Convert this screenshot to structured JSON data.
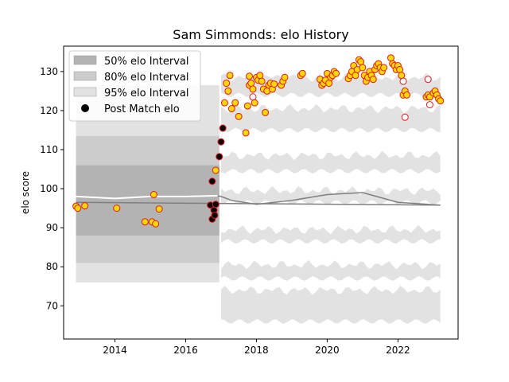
{
  "chart_data": {
    "type": "scatter",
    "title": "Sam Simmonds: elo History",
    "xlabel": "",
    "ylabel": "elo score",
    "xlim": [
      2012.55,
      2023.7
    ],
    "ylim": [
      61.5,
      136.5
    ],
    "x_ticks": [
      2014,
      2016,
      2018,
      2020,
      2022
    ],
    "y_ticks": [
      70,
      80,
      90,
      100,
      110,
      120,
      130
    ],
    "grid": false,
    "legend_position": "top-left",
    "legend": [
      {
        "label": "50% elo Interval",
        "kind": "band",
        "color": "#b3b3b3"
      },
      {
        "label": "80% elo Interval",
        "kind": "band",
        "color": "#cccccc"
      },
      {
        "label": "95% elo Interval",
        "kind": "band",
        "color": "#e2e2e2"
      },
      {
        "label": "Post Match elo",
        "kind": "marker",
        "color": "#000000"
      }
    ],
    "series": [
      {
        "label": "Post Match elo",
        "marker_face": "#ffd700",
        "marker_edge": "#e31a1c",
        "points": [
          {
            "x": 2012.9,
            "y": 95.5
          },
          {
            "x": 2012.95,
            "y": 95.0
          },
          {
            "x": 2013.15,
            "y": 95.6
          },
          {
            "x": 2014.05,
            "y": 95.0
          },
          {
            "x": 2014.85,
            "y": 91.5
          },
          {
            "x": 2015.05,
            "y": 91.5
          },
          {
            "x": 2015.1,
            "y": 98.5
          },
          {
            "x": 2015.15,
            "y": 91.0
          },
          {
            "x": 2015.25,
            "y": 94.8
          },
          {
            "x": 2016.85,
            "y": 104.7
          },
          {
            "x": 2017.1,
            "y": 122.0
          },
          {
            "x": 2017.15,
            "y": 127.0
          },
          {
            "x": 2017.2,
            "y": 125.0
          },
          {
            "x": 2017.25,
            "y": 129.0
          },
          {
            "x": 2017.3,
            "y": 120.5
          },
          {
            "x": 2017.4,
            "y": 122.0
          },
          {
            "x": 2017.5,
            "y": 118.5
          },
          {
            "x": 2017.7,
            "y": 114.3
          },
          {
            "x": 2017.75,
            "y": 121.2
          },
          {
            "x": 2017.8,
            "y": 126.5
          },
          {
            "x": 2017.8,
            "y": 128.8
          },
          {
            "x": 2017.85,
            "y": 127.0
          },
          {
            "x": 2017.9,
            "y": 125.5
          },
          {
            "x": 2017.95,
            "y": 122.0
          },
          {
            "x": 2018.0,
            "y": 128.5
          },
          {
            "x": 2018.05,
            "y": 127.8
          },
          {
            "x": 2018.1,
            "y": 129.0
          },
          {
            "x": 2018.15,
            "y": 127.5
          },
          {
            "x": 2018.2,
            "y": 125.5
          },
          {
            "x": 2018.25,
            "y": 119.5
          },
          {
            "x": 2018.3,
            "y": 125.0
          },
          {
            "x": 2018.35,
            "y": 126.5
          },
          {
            "x": 2018.4,
            "y": 127.0
          },
          {
            "x": 2018.45,
            "y": 125.5
          },
          {
            "x": 2018.5,
            "y": 126.8
          },
          {
            "x": 2018.7,
            "y": 126.5
          },
          {
            "x": 2018.75,
            "y": 127.5
          },
          {
            "x": 2018.8,
            "y": 128.5
          },
          {
            "x": 2019.25,
            "y": 129.0
          },
          {
            "x": 2019.3,
            "y": 129.5
          },
          {
            "x": 2019.8,
            "y": 128.0
          },
          {
            "x": 2019.85,
            "y": 126.5
          },
          {
            "x": 2019.9,
            "y": 127.0
          },
          {
            "x": 2019.95,
            "y": 127.8
          },
          {
            "x": 2020.0,
            "y": 129.5
          },
          {
            "x": 2020.05,
            "y": 127.0
          },
          {
            "x": 2020.1,
            "y": 128.5
          },
          {
            "x": 2020.15,
            "y": 129.0
          },
          {
            "x": 2020.2,
            "y": 130.0
          },
          {
            "x": 2020.25,
            "y": 129.5
          },
          {
            "x": 2020.6,
            "y": 128.2
          },
          {
            "x": 2020.65,
            "y": 129.0
          },
          {
            "x": 2020.7,
            "y": 130.0
          },
          {
            "x": 2020.75,
            "y": 131.5
          },
          {
            "x": 2020.8,
            "y": 129.0
          },
          {
            "x": 2020.85,
            "y": 130.5
          },
          {
            "x": 2020.9,
            "y": 133.0
          },
          {
            "x": 2020.95,
            "y": 132.5
          },
          {
            "x": 2021.0,
            "y": 131.0
          },
          {
            "x": 2021.05,
            "y": 129.0
          },
          {
            "x": 2021.1,
            "y": 127.5
          },
          {
            "x": 2021.15,
            "y": 128.5
          },
          {
            "x": 2021.2,
            "y": 130.0
          },
          {
            "x": 2021.25,
            "y": 129.0
          },
          {
            "x": 2021.3,
            "y": 128.0
          },
          {
            "x": 2021.35,
            "y": 130.5
          },
          {
            "x": 2021.4,
            "y": 131.5
          },
          {
            "x": 2021.45,
            "y": 132.0
          },
          {
            "x": 2021.5,
            "y": 131.0
          },
          {
            "x": 2021.55,
            "y": 130.0
          },
          {
            "x": 2021.6,
            "y": 131.0
          },
          {
            "x": 2021.8,
            "y": 133.5
          },
          {
            "x": 2021.85,
            "y": 132.0
          },
          {
            "x": 2021.9,
            "y": 131.5
          },
          {
            "x": 2021.95,
            "y": 130.5
          },
          {
            "x": 2022.0,
            "y": 131.5
          },
          {
            "x": 2022.05,
            "y": 130.5
          },
          {
            "x": 2022.1,
            "y": 129.0
          },
          {
            "x": 2022.15,
            "y": 124.0
          },
          {
            "x": 2022.2,
            "y": 125.0
          },
          {
            "x": 2022.25,
            "y": 124.0
          },
          {
            "x": 2022.8,
            "y": 123.5
          },
          {
            "x": 2022.85,
            "y": 124.0
          },
          {
            "x": 2022.9,
            "y": 123.5
          },
          {
            "x": 2023.0,
            "y": 124.5
          },
          {
            "x": 2023.05,
            "y": 125.0
          },
          {
            "x": 2023.1,
            "y": 124.0
          },
          {
            "x": 2023.15,
            "y": 123.0
          },
          {
            "x": 2023.2,
            "y": 122.5
          }
        ]
      },
      {
        "label": "Post Match elo",
        "marker_face": "#000000",
        "marker_edge": "#e31a1c",
        "points": [
          {
            "x": 2016.7,
            "y": 95.8
          },
          {
            "x": 2016.75,
            "y": 92.2
          },
          {
            "x": 2016.8,
            "y": 94.5
          },
          {
            "x": 2016.82,
            "y": 93.2
          },
          {
            "x": 2016.85,
            "y": 96.0
          },
          {
            "x": 2016.75,
            "y": 101.9
          },
          {
            "x": 2016.95,
            "y": 108.2
          },
          {
            "x": 2017.0,
            "y": 112.0
          },
          {
            "x": 2017.05,
            "y": 115.5
          }
        ]
      },
      {
        "label": "Post Match elo",
        "marker_face": "#ffffff",
        "marker_edge": "#e31a1c",
        "points": [
          {
            "x": 2017.9,
            "y": 123.5
          },
          {
            "x": 2022.15,
            "y": 127.5
          },
          {
            "x": 2022.2,
            "y": 118.3
          },
          {
            "x": 2022.85,
            "y": 128.0
          },
          {
            "x": 2022.9,
            "y": 121.5
          }
        ]
      }
    ],
    "reference_line": {
      "x": [
        2012.9,
        2023.2
      ],
      "y": [
        96.5,
        95.8
      ]
    },
    "median_line": [
      {
        "x": 2012.9,
        "y": 98.0
      },
      {
        "x": 2014.0,
        "y": 97.5
      },
      {
        "x": 2015.0,
        "y": 98.0
      },
      {
        "x": 2016.0,
        "y": 98.0
      },
      {
        "x": 2016.9,
        "y": 98.2
      },
      {
        "x": 2017.0,
        "y": 98.0
      },
      {
        "x": 2017.3,
        "y": 97.0
      },
      {
        "x": 2018.0,
        "y": 96.0
      },
      {
        "x": 2019.0,
        "y": 97.0
      },
      {
        "x": 2020.0,
        "y": 98.5
      },
      {
        "x": 2021.0,
        "y": 99.0
      },
      {
        "x": 2022.0,
        "y": 96.5
      },
      {
        "x": 2023.2,
        "y": 95.8
      }
    ],
    "bands_early": {
      "x_range": [
        2012.9,
        2016.95
      ],
      "p50": [
        88.0,
        106.0
      ],
      "p80": [
        81.0,
        113.5
      ],
      "p95": [
        76.0,
        126.5
      ]
    }
  }
}
